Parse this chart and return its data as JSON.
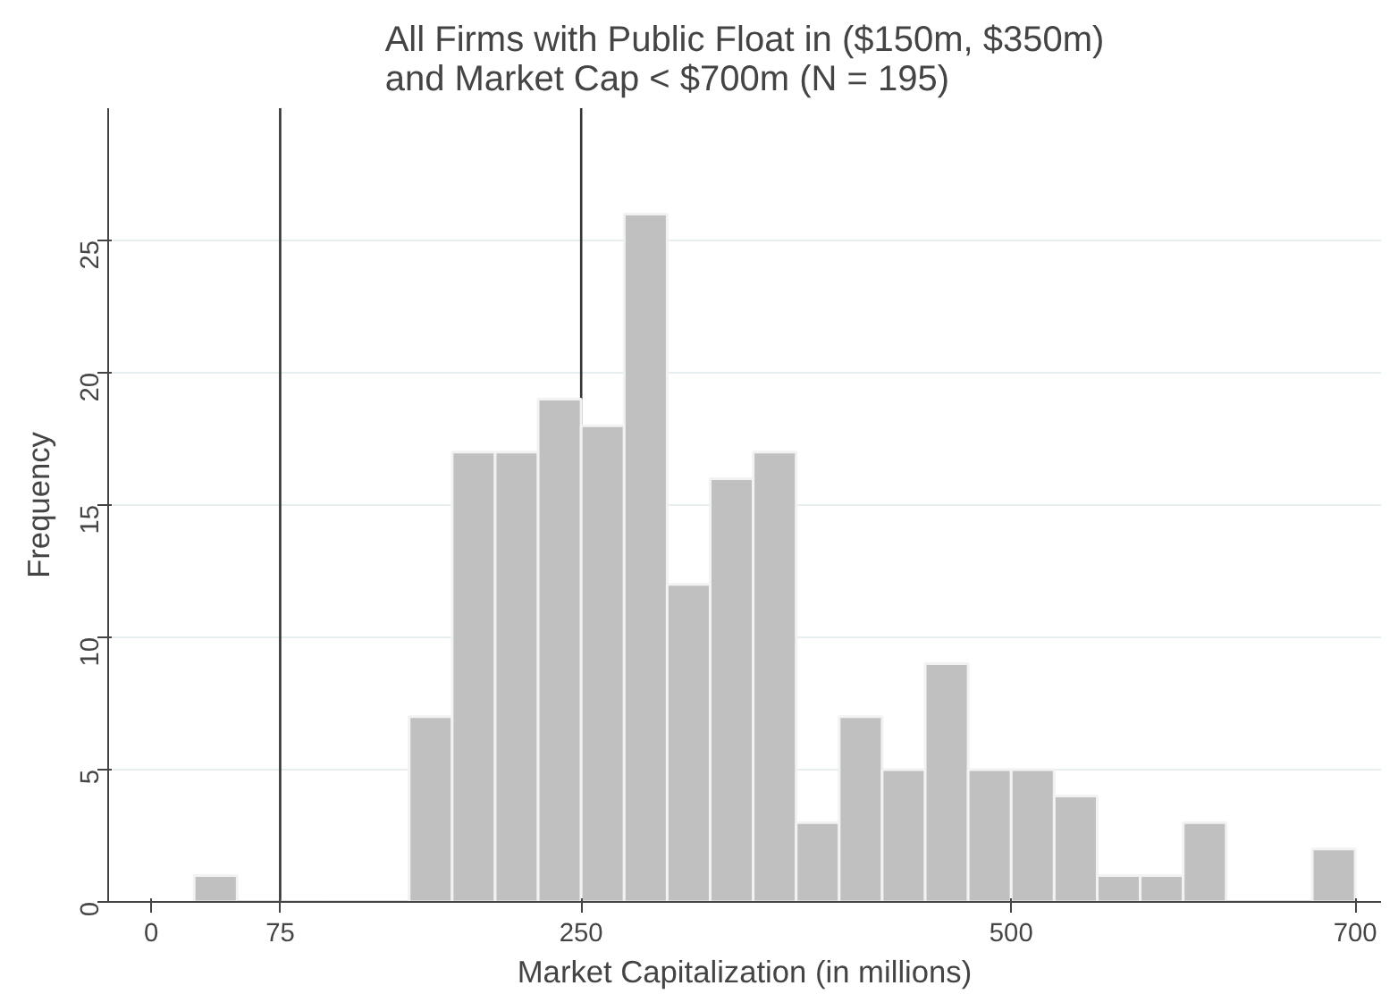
{
  "chart_data": {
    "type": "histogram",
    "title": "All Firms with Public Float in ($150m, $350m)\nand Market Cap < $700m (N = 195)",
    "xlabel": "Market Capitalization (in millions)",
    "ylabel": "Frequency",
    "bins": [
      25,
      50,
      75,
      100,
      125,
      150,
      175,
      200,
      225,
      250,
      275,
      300,
      325,
      350,
      375,
      400,
      425,
      450,
      475,
      500,
      525,
      550,
      575,
      600,
      625,
      650,
      675,
      700
    ],
    "values": [
      1,
      0,
      0,
      0,
      0,
      7,
      17,
      17,
      19,
      18,
      26,
      12,
      16,
      17,
      3,
      7,
      5,
      9,
      5,
      5,
      4,
      1,
      1,
      3,
      0,
      0,
      2
    ],
    "color": "#c0c0c0",
    "xlim": [
      -25,
      715
    ],
    "xticks": [
      0,
      75,
      250,
      500,
      700
    ],
    "ylim": [
      0,
      30
    ],
    "yticks": [
      0,
      5,
      10,
      15,
      20,
      25
    ],
    "grid": "y",
    "ref_lines": [
      {
        "axis": "x",
        "value": 75,
        "color": "#333333"
      },
      {
        "axis": "x",
        "value": 250,
        "color": "#333333"
      }
    ]
  }
}
